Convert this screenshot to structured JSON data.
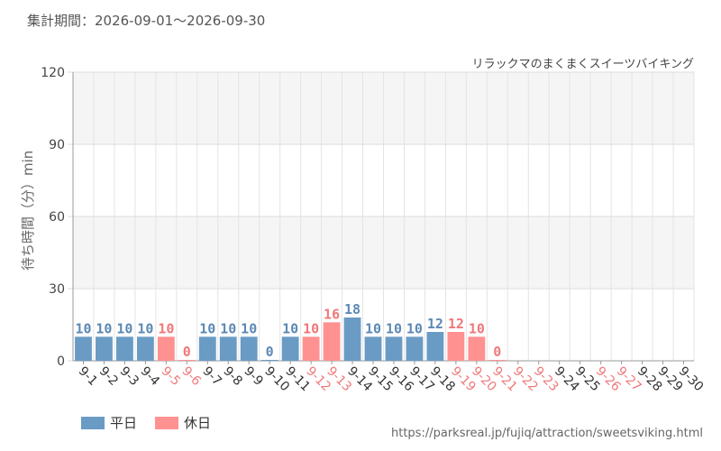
{
  "period_label": "集計期間：2026-09-01～2026-09-30",
  "url": "https://parksreal.jp/fujiq/attraction/sweetsviking.html",
  "colors": {
    "weekday": "#6a9bc4",
    "holiday": "#ff9191",
    "weekday_text": "#5c89b5",
    "holiday_text": "#f0787a"
  },
  "chart_data": {
    "type": "bar",
    "subtitle": "リラックマのまくまくスイーツバイキング",
    "ylabel": "待ち時間（分）min",
    "ylim": [
      0,
      120
    ],
    "yticks": [
      0,
      30,
      60,
      90,
      120
    ],
    "grid": true,
    "legend_position": "bottom-left",
    "legend": [
      {
        "name": "平日",
        "key": "weekday"
      },
      {
        "name": "休日",
        "key": "holiday"
      }
    ],
    "categories": [
      "9-1",
      "9-2",
      "9-3",
      "9-4",
      "9-5",
      "9-6",
      "9-7",
      "9-8",
      "9-9",
      "9-10",
      "9-11",
      "9-12",
      "9-13",
      "9-14",
      "9-15",
      "9-16",
      "9-17",
      "9-18",
      "9-19",
      "9-20",
      "9-21",
      "9-22",
      "9-23",
      "9-24",
      "9-25",
      "9-26",
      "9-27",
      "9-28",
      "9-29",
      "9-30"
    ],
    "day_type": [
      "weekday",
      "weekday",
      "weekday",
      "weekday",
      "holiday",
      "holiday",
      "weekday",
      "weekday",
      "weekday",
      "weekday",
      "weekday",
      "holiday",
      "holiday",
      "weekday",
      "weekday",
      "weekday",
      "weekday",
      "weekday",
      "holiday",
      "holiday",
      "holiday",
      "holiday",
      "holiday",
      "weekday",
      "weekday",
      "holiday",
      "holiday",
      "weekday",
      "weekday",
      "weekday"
    ],
    "values": [
      10,
      10,
      10,
      10,
      10,
      0,
      10,
      10,
      10,
      0,
      10,
      10,
      16,
      18,
      10,
      10,
      10,
      12,
      12,
      10,
      0,
      null,
      null,
      null,
      null,
      null,
      null,
      null,
      null,
      null
    ]
  }
}
